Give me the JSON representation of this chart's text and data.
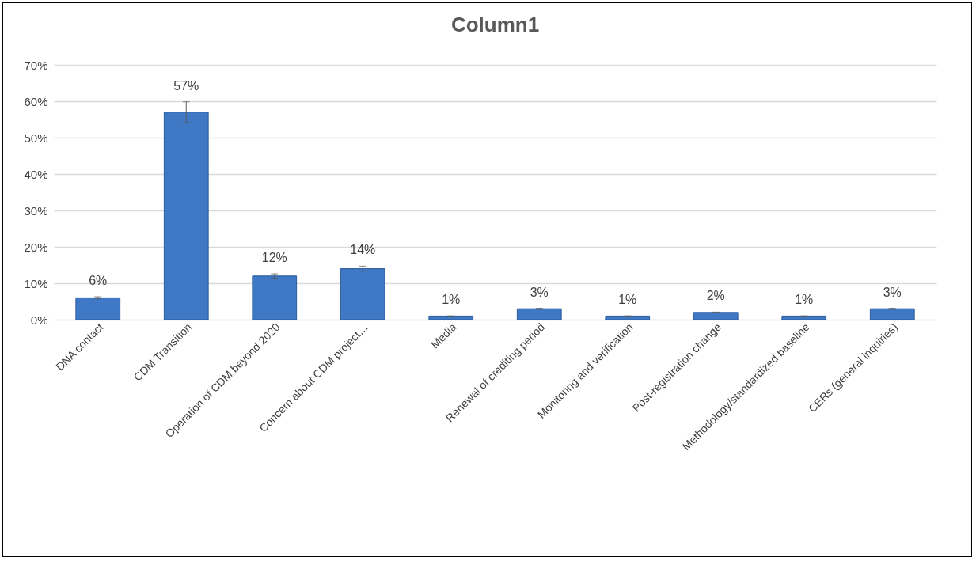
{
  "chart_data": {
    "type": "bar",
    "title": "Column1",
    "categories": [
      "DNA contact",
      "CDM Transition",
      "Operation of CDM beyond 2020",
      "Concern about CDM project…",
      "Media",
      "Renewal of crediting period",
      "Monitoring and verification",
      "Post-registration change",
      "Methodology/standardized baseline",
      "CERs (general inquiries)"
    ],
    "values": [
      6,
      57,
      12,
      14,
      1,
      3,
      1,
      2,
      1,
      3
    ],
    "errors": [
      0.3,
      2.85,
      0.6,
      0.7,
      0.05,
      0.15,
      0.05,
      0.1,
      0.05,
      0.15
    ],
    "value_labels": [
      "6%",
      "57%",
      "12%",
      "14%",
      "1%",
      "3%",
      "1%",
      "2%",
      "1%",
      "3%"
    ],
    "color": "#3f78c4",
    "ylim": [
      0,
      70
    ],
    "yticks": [
      {
        "value": 0,
        "label": "0%"
      },
      {
        "value": 10,
        "label": "10%"
      },
      {
        "value": 20,
        "label": "20%"
      },
      {
        "value": 30,
        "label": "30%"
      },
      {
        "value": 40,
        "label": "40%"
      },
      {
        "value": 50,
        "label": "50%"
      },
      {
        "value": 60,
        "label": "60%"
      },
      {
        "value": 70,
        "label": "70%"
      }
    ],
    "grid": "y"
  }
}
